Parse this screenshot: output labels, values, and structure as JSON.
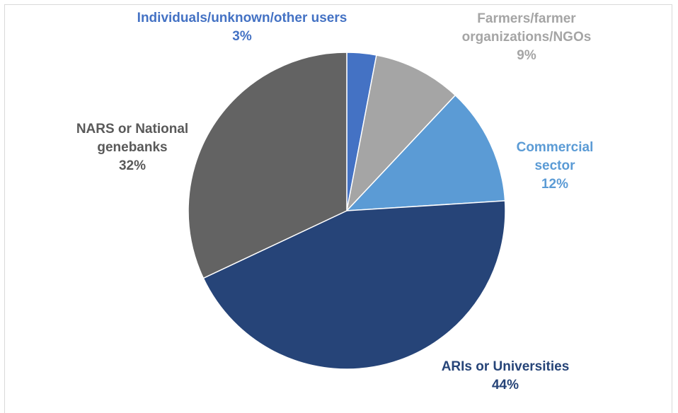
{
  "chart_data": {
    "type": "pie",
    "title": "",
    "start_angle_deg": 0,
    "direction": "clockwise",
    "legend": "none",
    "slices": [
      {
        "lines": [
          "Individuals/unknown/other users"
        ],
        "percent_label": "3%",
        "value": 3,
        "color": "#4472c4"
      },
      {
        "lines": [
          "Farmers/farmer",
          "organizations/NGOs"
        ],
        "percent_label": "9%",
        "value": 9,
        "color": "#a5a5a5"
      },
      {
        "lines": [
          "Commercial",
          "sector"
        ],
        "percent_label": "12%",
        "value": 12,
        "color": "#5b9bd5"
      },
      {
        "lines": [
          "ARIs or Universities"
        ],
        "percent_label": "44%",
        "value": 44,
        "color": "#264478"
      },
      {
        "lines": [
          "NARS or National",
          "genebanks"
        ],
        "percent_label": "32%",
        "value": 32,
        "color": "#636363"
      }
    ]
  }
}
